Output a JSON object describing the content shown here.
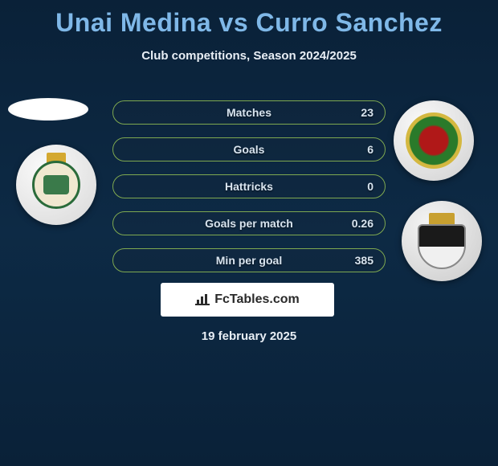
{
  "title": "Unai Medina vs Curro Sanchez",
  "subtitle": "Club competitions, Season 2024/2025",
  "date": "19 february 2025",
  "attribution": "FcTables.com",
  "colors": {
    "title_color": "#7fb8e8",
    "text_color": "#e8eef5",
    "stat_border": "#7ea850",
    "bg_top": "#0a2138",
    "bg_mid": "#0d2a45"
  },
  "stats": [
    {
      "label": "Matches",
      "value": "23"
    },
    {
      "label": "Goals",
      "value": "6"
    },
    {
      "label": "Hattricks",
      "value": "0"
    },
    {
      "label": "Goals per match",
      "value": "0.26"
    },
    {
      "label": "Min per goal",
      "value": "385"
    }
  ],
  "badges": {
    "left": {
      "name": "racing-santander",
      "primary_color": "#2a6b3a",
      "secondary_color": "#f0e8d0"
    },
    "right_top": {
      "name": "belarus-federation",
      "primary_color": "#b01818",
      "secondary_color": "#2a7a2a",
      "accent": "#d4b840"
    },
    "right_bottom": {
      "name": "burgos-cf",
      "primary_color": "#1a1a1a",
      "secondary_color": "#f0f0f0",
      "accent": "#c8a030"
    }
  },
  "avatar_placeholder": true
}
